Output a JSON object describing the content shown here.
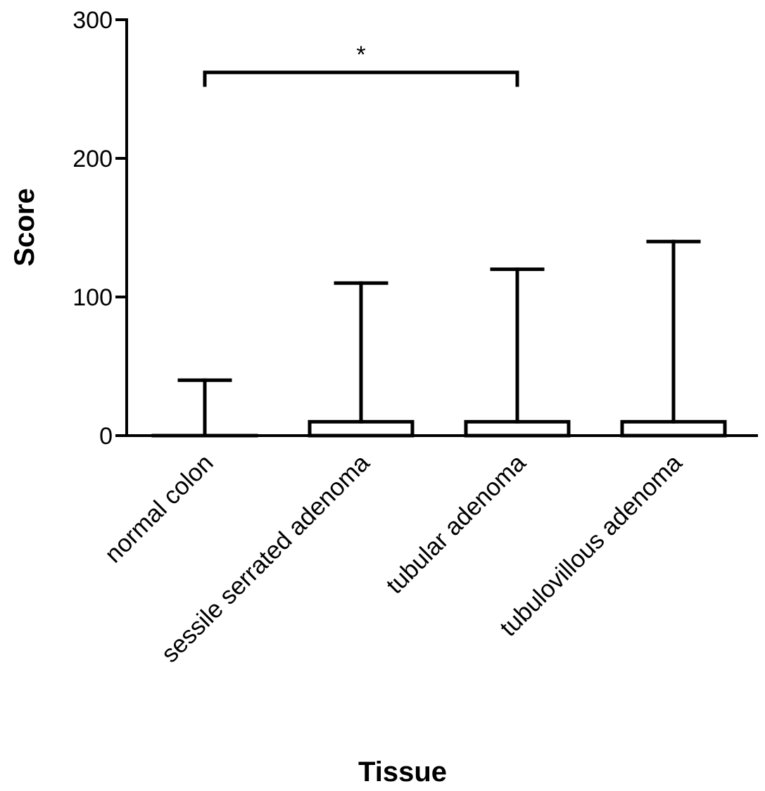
{
  "chart_data": {
    "type": "bar",
    "title": "",
    "xlabel": "Tissue",
    "ylabel": "Score",
    "ylim": [
      0,
      300
    ],
    "yticks": [
      0,
      100,
      200,
      300
    ],
    "categories": [
      "normal colon",
      "sessile serrated adenoma",
      "tubular adenoma",
      "tubulovillous adenoma"
    ],
    "values": [
      0,
      10,
      10,
      10
    ],
    "error_upper": [
      40,
      110,
      120,
      140
    ],
    "significance": [
      {
        "from": 0,
        "to": 2,
        "y": 262,
        "label": "*"
      }
    ],
    "grid": false,
    "legend": "none",
    "colors": {
      "bar_fill": "#ffffff",
      "stroke": "#000000"
    }
  }
}
